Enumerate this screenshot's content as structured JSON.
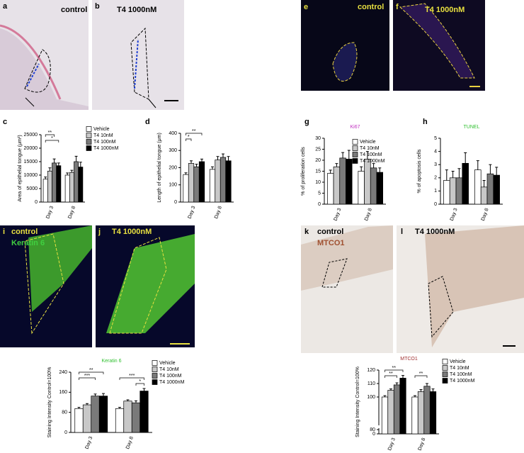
{
  "panels": [
    {
      "letter": "a",
      "label": "control"
    },
    {
      "letter": "b",
      "label": "T4 1000nM"
    },
    {
      "letter": "e",
      "label": "control"
    },
    {
      "letter": "f",
      "label": "T4 1000nM"
    },
    {
      "letter": "i",
      "label": "control",
      "stain": "Keratin 6"
    },
    {
      "letter": "j",
      "label": "T4 1000nM"
    },
    {
      "letter": "k",
      "label": "control",
      "stain": "MTCO1"
    },
    {
      "letter": "l",
      "label": "T4 1000nM"
    }
  ],
  "chart_data": [
    {
      "type": "bar",
      "letter": "c",
      "ylabel": "Area of epithelial tongue (μm²)",
      "categories": [
        "Day 3",
        "Day 8"
      ],
      "ylim": [
        0,
        25000
      ],
      "yticks": [
        0,
        5000,
        10000,
        15000,
        20000,
        25000
      ],
      "legend": true,
      "annotations": [
        "**",
        "*"
      ],
      "series": [
        {
          "name": "Vehicle",
          "color": "#ffffff",
          "values": [
            8500,
            10000
          ],
          "errors": [
            800,
            800
          ]
        },
        {
          "name": "T4 10nM",
          "color": "#c8c8c8",
          "values": [
            11500,
            11000
          ],
          "errors": [
            1200,
            800
          ]
        },
        {
          "name": "T4 100nM",
          "color": "#7a7a7a",
          "values": [
            14500,
            15000
          ],
          "errors": [
            1500,
            2000
          ]
        },
        {
          "name": "T4 1000nM",
          "color": "#000000",
          "values": [
            13500,
            13000
          ],
          "errors": [
            1000,
            1800
          ]
        }
      ]
    },
    {
      "type": "bar",
      "letter": "d",
      "ylabel": "Length of epithelial tongue (μm)",
      "categories": [
        "Day 3",
        "Day 8"
      ],
      "ylim": [
        0,
        400
      ],
      "yticks": [
        0,
        100,
        200,
        300,
        400
      ],
      "legend": false,
      "annotations": [
        "*",
        "**"
      ],
      "series": [
        {
          "name": "Vehicle",
          "color": "#ffffff",
          "values": [
            160,
            190
          ],
          "errors": [
            10,
            15
          ]
        },
        {
          "name": "T4 10nM",
          "color": "#c8c8c8",
          "values": [
            225,
            245
          ],
          "errors": [
            15,
            20
          ]
        },
        {
          "name": "T4 100nM",
          "color": "#7a7a7a",
          "values": [
            205,
            260
          ],
          "errors": [
            15,
            20
          ]
        },
        {
          "name": "T4 1000nM",
          "color": "#000000",
          "values": [
            235,
            240
          ],
          "errors": [
            15,
            25
          ]
        }
      ]
    },
    {
      "type": "bar",
      "letter": "g",
      "title": "Ki67",
      "title_color": "#c030c0",
      "ylabel": "% of proliferation cells",
      "categories": [
        "Day 3",
        "Day 8"
      ],
      "ylim": [
        0,
        30
      ],
      "yticks": [
        0,
        5,
        10,
        15,
        20,
        25,
        30
      ],
      "legend": true,
      "annotations": [],
      "series": [
        {
          "name": "Vehicle",
          "color": "#ffffff",
          "values": [
            14,
            15
          ],
          "errors": [
            1.5,
            2
          ]
        },
        {
          "name": "T4 10nM",
          "color": "#c8c8c8",
          "values": [
            17,
            20.5
          ],
          "errors": [
            1.5,
            3.5
          ]
        },
        {
          "name": "T4 100nM",
          "color": "#7a7a7a",
          "values": [
            21,
            16.5
          ],
          "errors": [
            2.5,
            2
          ]
        },
        {
          "name": "T4 1000nM",
          "color": "#000000",
          "values": [
            20.5,
            14.5
          ],
          "errors": [
            4,
            2
          ]
        }
      ]
    },
    {
      "type": "bar",
      "letter": "h",
      "title": "TUNEL",
      "title_color": "#30c030",
      "ylabel": "% of apoptosis cells",
      "categories": [
        "Day 3",
        "Day 8"
      ],
      "ylim": [
        0,
        5
      ],
      "yticks": [
        0,
        1,
        2,
        3,
        4,
        5
      ],
      "legend": false,
      "annotations": [],
      "series": [
        {
          "name": "Vehicle",
          "color": "#ffffff",
          "values": [
            1.8,
            2.6
          ],
          "errors": [
            0.8,
            0.7
          ]
        },
        {
          "name": "T4 10nM",
          "color": "#c8c8c8",
          "values": [
            2,
            1.3
          ],
          "errors": [
            0.5,
            0.5
          ]
        },
        {
          "name": "T4 100nM",
          "color": "#7a7a7a",
          "values": [
            2,
            2.3
          ],
          "errors": [
            0.7,
            0.7
          ]
        },
        {
          "name": "T4 1000nM",
          "color": "#000000",
          "values": [
            3.1,
            2.2
          ],
          "errors": [
            0.8,
            0.6
          ]
        }
      ]
    },
    {
      "type": "bar",
      "title": "Keratin 6",
      "title_color": "#30c030",
      "ylabel": "Staining Intensity Control=100%",
      "categories": [
        "Day 3",
        "Day 8"
      ],
      "ylim": [
        0,
        240
      ],
      "yticks": [
        0,
        80,
        160,
        240
      ],
      "legend": true,
      "annotations": [
        "**",
        "***",
        "***",
        "*"
      ],
      "series": [
        {
          "name": "Vehicle",
          "color": "#ffffff",
          "values": [
            95,
            95
          ],
          "errors": [
            5,
            5
          ]
        },
        {
          "name": "T4 10nM",
          "color": "#c8c8c8",
          "values": [
            110,
            125
          ],
          "errors": [
            5,
            5
          ]
        },
        {
          "name": "T4 100nM",
          "color": "#7a7a7a",
          "values": [
            145,
            118
          ],
          "errors": [
            8,
            8
          ]
        },
        {
          "name": "T4 1000nM",
          "color": "#000000",
          "values": [
            145,
            165
          ],
          "errors": [
            10,
            10
          ]
        }
      ]
    },
    {
      "type": "bar",
      "title": "MTCO1",
      "title_color": "#a03030",
      "ylabel": "Staining Intensity Control=100%",
      "categories": [
        "Day 3",
        "Day 8"
      ],
      "ylim": [
        0,
        120
      ],
      "yticks": [
        0,
        80,
        100,
        110,
        120
      ],
      "broken_axis": true,
      "legend": true,
      "annotations": [
        "**",
        "**",
        "**"
      ],
      "series": [
        {
          "name": "Vehicle",
          "color": "#ffffff",
          "values": [
            100,
            100
          ],
          "errors": [
            1,
            1
          ]
        },
        {
          "name": "T4 10nM",
          "color": "#c8c8c8",
          "values": [
            105,
            104
          ],
          "errors": [
            1,
            1.5
          ]
        },
        {
          "name": "T4 100nM",
          "color": "#7a7a7a",
          "values": [
            109,
            108
          ],
          "errors": [
            1.5,
            2
          ]
        },
        {
          "name": "T4 1000nM",
          "color": "#000000",
          "values": [
            114,
            104
          ],
          "errors": [
            2,
            2
          ]
        }
      ]
    }
  ]
}
